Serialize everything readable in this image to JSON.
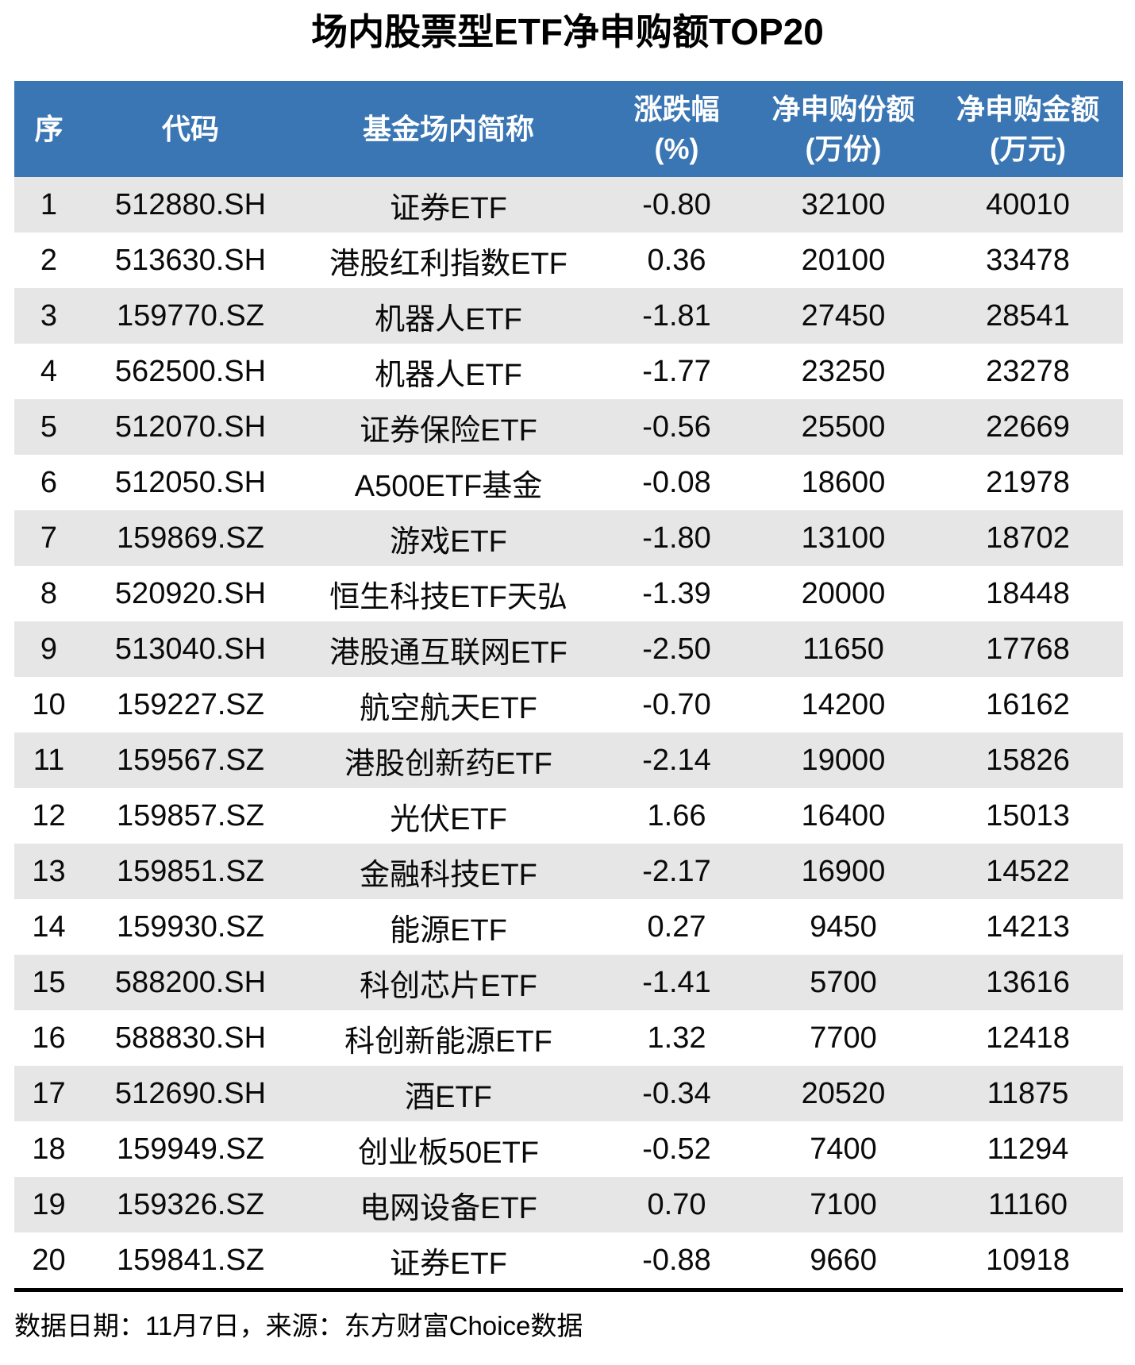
{
  "page": {
    "title": "场内股票型ETF净申购额TOP20",
    "footer_note": "数据日期：11月7日，来源：东方财富Choice数据"
  },
  "colors": {
    "header_bg": "#3A76B4",
    "header_text": "#FFFFFF",
    "row_stripe_bg": "#E6E6E6",
    "row_bg": "#FFFFFF",
    "divider": "#000000",
    "text": "#000000"
  },
  "chart_data": {
    "type": "table",
    "title": "场内股票型ETF净申购额TOP20",
    "columns": [
      "序",
      "代码",
      "基金场内简称",
      "涨跌幅\n(%)",
      "净申购份额\n(万份)",
      "净申购金额\n(万元)"
    ],
    "rows": [
      [
        "1",
        "512880.SH",
        "证券ETF",
        "-0.80",
        "32100",
        "40010"
      ],
      [
        "2",
        "513630.SH",
        "港股红利指数ETF",
        "0.36",
        "20100",
        "33478"
      ],
      [
        "3",
        "159770.SZ",
        "机器人ETF",
        "-1.81",
        "27450",
        "28541"
      ],
      [
        "4",
        "562500.SH",
        "机器人ETF",
        "-1.77",
        "23250",
        "23278"
      ],
      [
        "5",
        "512070.SH",
        "证券保险ETF",
        "-0.56",
        "25500",
        "22669"
      ],
      [
        "6",
        "512050.SH",
        "A500ETF基金",
        "-0.08",
        "18600",
        "21978"
      ],
      [
        "7",
        "159869.SZ",
        "游戏ETF",
        "-1.80",
        "13100",
        "18702"
      ],
      [
        "8",
        "520920.SH",
        "恒生科技ETF天弘",
        "-1.39",
        "20000",
        "18448"
      ],
      [
        "9",
        "513040.SH",
        "港股通互联网ETF",
        "-2.50",
        "11650",
        "17768"
      ],
      [
        "10",
        "159227.SZ",
        "航空航天ETF",
        "-0.70",
        "14200",
        "16162"
      ],
      [
        "11",
        "159567.SZ",
        "港股创新药ETF",
        "-2.14",
        "19000",
        "15826"
      ],
      [
        "12",
        "159857.SZ",
        "光伏ETF",
        "1.66",
        "16400",
        "15013"
      ],
      [
        "13",
        "159851.SZ",
        "金融科技ETF",
        "-2.17",
        "16900",
        "14522"
      ],
      [
        "14",
        "159930.SZ",
        "能源ETF",
        "0.27",
        "9450",
        "14213"
      ],
      [
        "15",
        "588200.SH",
        "科创芯片ETF",
        "-1.41",
        "5700",
        "13616"
      ],
      [
        "16",
        "588830.SH",
        "科创新能源ETF",
        "1.32",
        "7700",
        "12418"
      ],
      [
        "17",
        "512690.SH",
        "酒ETF",
        "-0.34",
        "20520",
        "11875"
      ],
      [
        "18",
        "159949.SZ",
        "创业板50ETF",
        "-0.52",
        "7400",
        "11294"
      ],
      [
        "19",
        "159326.SZ",
        "电网设备ETF",
        "0.70",
        "7100",
        "11160"
      ],
      [
        "20",
        "159841.SZ",
        "证券ETF",
        "-0.88",
        "9660",
        "10918"
      ]
    ]
  }
}
